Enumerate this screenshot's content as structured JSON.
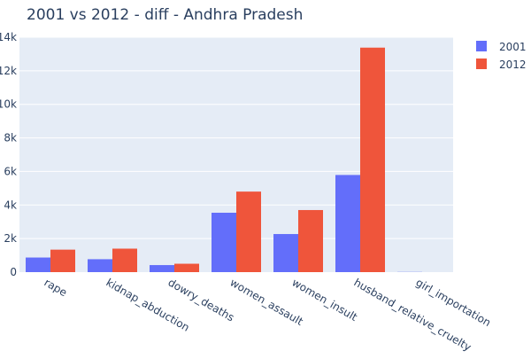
{
  "colors": {
    "series_2001": "#636efa",
    "series_2012": "#ef553b",
    "plot_bg": "#e5ecf6",
    "grid": "#ffffff"
  },
  "chart_data": {
    "type": "bar",
    "title": "2001 vs 2012 - diff - Andhra Pradesh",
    "xlabel": "",
    "ylabel": "",
    "categories": [
      "rape",
      "kidnap_abduction",
      "dowry_deaths",
      "women_assault",
      "women_insult",
      "husband_relative_cruelty",
      "girl_importation"
    ],
    "series": [
      {
        "name": "2001",
        "values": [
          870,
          770,
          420,
          3540,
          2270,
          5790,
          10
        ]
      },
      {
        "name": "2012",
        "values": [
          1340,
          1400,
          500,
          4800,
          3700,
          13380,
          0
        ]
      }
    ],
    "ylim": [
      0,
      14000
    ],
    "yticks": [
      0,
      2000,
      4000,
      6000,
      8000,
      10000,
      12000,
      14000
    ],
    "ytick_labels": [
      "0",
      "2k",
      "4k",
      "6k",
      "8k",
      "10k",
      "12k",
      "14k"
    ],
    "grid": true,
    "legend_position": "top-right"
  }
}
